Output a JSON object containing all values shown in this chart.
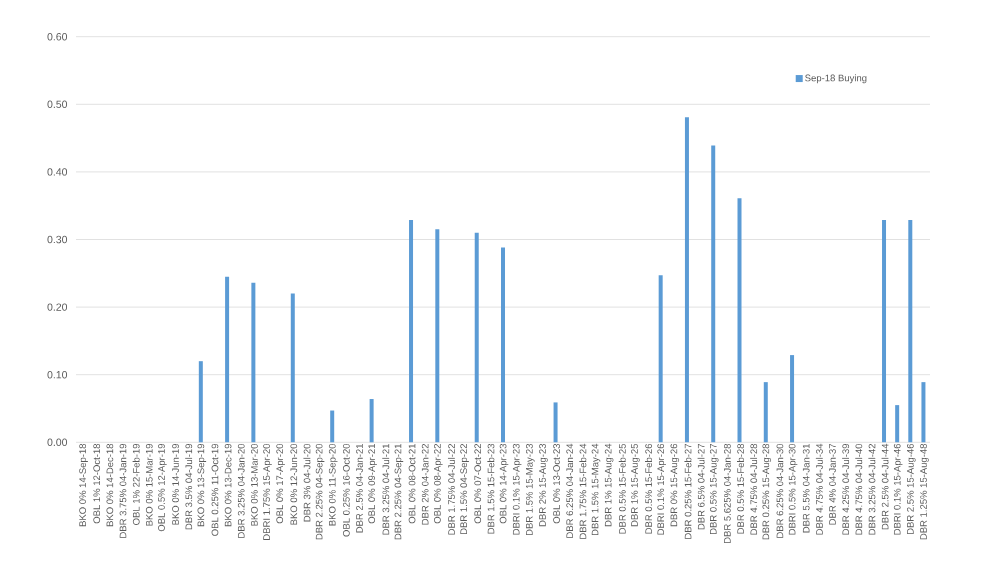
{
  "chart_data": {
    "type": "bar",
    "categories": [
      "BKO 0% 14-Sep-18",
      "OBL 1% 12-Oct-18",
      "BKO 0% 14-Dec-18",
      "DBR 3.75% 04-Jan-19",
      "OBL 1% 22-Feb-19",
      "BKO 0% 15-Mar-19",
      "OBL 0.5% 12-Apr-19",
      "BKO 0% 14-Jun-19",
      "DBR 3.5% 04-Jul-19",
      "BKO 0% 13-Sep-19",
      "OBL 0.25% 11-Oct-19",
      "BKO 0% 13-Dec-19",
      "DBR 3.25% 04-Jan-20",
      "BKO 0% 13-Mar-20",
      "DBRI 1.75% 15-Apr-20",
      "OBL 0% 17-Apr-20",
      "BKO 0% 12-Jun-20",
      "DBR 3% 04-Jul-20",
      "DBR 2.25% 04-Sep-20",
      "BKO 0% 11-Sep-20",
      "OBL 0.25% 16-Oct-20",
      "DBR 2.5% 04-Jan-21",
      "OBL 0% 09-Apr-21",
      "DBR 3.25% 04-Jul-21",
      "DBR 2.25% 04-Sep-21",
      "OBL 0% 08-Oct-21",
      "DBR 2% 04-Jan-22",
      "OBL 0% 08-Apr-22",
      "DBR 1.75% 04-Jul-22",
      "DBR 1.5% 04-Sep-22",
      "OBL 0% 07-Oct-22",
      "DBR 1.5% 15-Feb-23",
      "OBL 0% 14-Apr-23",
      "DBRI 0.1% 15-Apr-23",
      "DBR 1.5% 15-May-23",
      "DBR 2% 15-Aug-23",
      "OBL 0% 13-Oct-23",
      "DBR 6.25% 04-Jan-24",
      "DBR 1.75% 15-Feb-24",
      "DBR 1.5% 15-May-24",
      "DBR 1% 15-Aug-24",
      "DBR 0.5% 15-Feb-25",
      "DBR 1% 15-Aug-25",
      "DBR 0.5% 15-Feb-26",
      "DBRI 0.1% 15-Apr-26",
      "DBR 0% 15-Aug-26",
      "DBR 0.25% 15-Feb-27",
      "DBR 6.5% 04-Jul-27",
      "DBR 0.5% 15-Aug-27",
      "DBR 5.625% 04-Jan-28",
      "DBR 0.5% 15-Feb-28",
      "DBR 4.75% 04-Jul-28",
      "DBR 0.25% 15-Aug-28",
      "DBR 6.25% 04-Jan-30",
      "DBRI 0.5% 15-Apr-30",
      "DBR 5.5% 04-Jan-31",
      "DBR 4.75% 04-Jul-34",
      "DBR 4% 04-Jan-37",
      "DBR 4.25% 04-Jul-39",
      "DBR 4.75% 04-Jul-40",
      "DBR 3.25% 04-Jul-42",
      "DBR 2.5% 04-Jul-44",
      "DBRI 0.1% 15-Apr-46",
      "DBR 2.5% 15-Aug-46",
      "DBR 1.25% 15-Aug-48"
    ],
    "series": [
      {
        "name": "Sep-18 Buying",
        "color": "#5b9bd5",
        "values": [
          null,
          null,
          null,
          null,
          null,
          null,
          null,
          null,
          null,
          0.12,
          null,
          0.245,
          null,
          0.236,
          null,
          null,
          0.22,
          null,
          null,
          0.047,
          null,
          null,
          0.064,
          null,
          null,
          0.329,
          null,
          0.315,
          null,
          null,
          0.31,
          null,
          0.288,
          null,
          null,
          null,
          0.059,
          null,
          null,
          null,
          null,
          null,
          null,
          null,
          0.247,
          null,
          0.481,
          null,
          0.439,
          null,
          0.361,
          null,
          0.089,
          null,
          0.129,
          null,
          null,
          null,
          null,
          null,
          null,
          0.329,
          0.055,
          0.329,
          0.089
        ]
      }
    ],
    "ylim": [
      0,
      0.6
    ],
    "yticks": [
      {
        "value": 0,
        "label": "0.00"
      },
      {
        "value": 0.1,
        "label": "0.10"
      },
      {
        "value": 0.2,
        "label": "0.20"
      },
      {
        "value": 0.3,
        "label": "0.30"
      },
      {
        "value": 0.4,
        "label": "0.40"
      },
      {
        "value": 0.5,
        "label": "0.50"
      },
      {
        "value": 0.6,
        "label": "0.60"
      }
    ],
    "grid": "y",
    "legend": "top right"
  }
}
